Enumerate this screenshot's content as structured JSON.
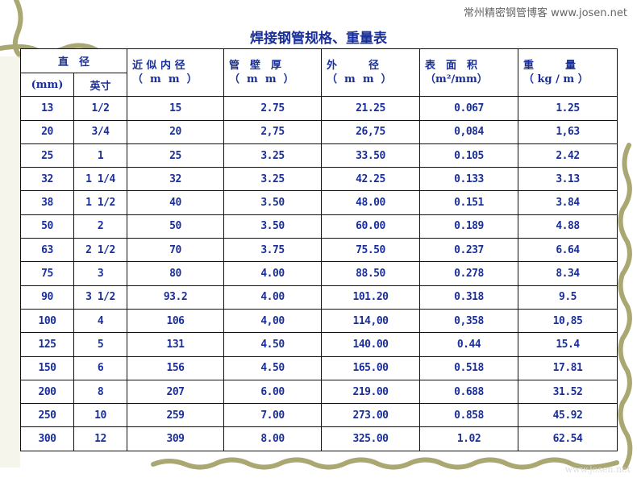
{
  "site_label": "常州精密钢管博客 www.josen.net",
  "title": "焊接钢管规格、重量表",
  "watermark": "www.josen.net",
  "headers": {
    "diameter": "直　径",
    "mm": "(mm)",
    "inch": "英寸",
    "inner": [
      "近 似 内 径",
      "（  m  m  ）"
    ],
    "wall": [
      "管　壁　厚",
      "（  m  m  ）"
    ],
    "outer": [
      "外　　　径",
      "（  m  m  ）"
    ],
    "surface": [
      "表　面　积",
      "（m²/mm）"
    ],
    "weight": [
      "重　　　量",
      "（ kg / m ）"
    ]
  },
  "rows": [
    [
      "13",
      "1/2",
      "15",
      "2.75",
      "21.25",
      "0.067",
      "1.25"
    ],
    [
      "20",
      "3/4",
      "20",
      "2,75",
      "26,75",
      "0,084",
      "1,63"
    ],
    [
      "25",
      "1",
      "25",
      "3.25",
      "33.50",
      "0.105",
      "2.42"
    ],
    [
      "32",
      "1 1/4",
      "32",
      "3.25",
      "42.25",
      "0.133",
      "3.13"
    ],
    [
      "38",
      "1 1/2",
      "40",
      "3.50",
      "48.00",
      "0.151",
      "3.84"
    ],
    [
      "50",
      "2",
      "50",
      "3.50",
      "60.00",
      "0.189",
      "4.88"
    ],
    [
      "63",
      "2 1/2",
      "70",
      "3.75",
      "75.50",
      "0.237",
      "6.64"
    ],
    [
      "75",
      "3",
      "80",
      "4.00",
      "88.50",
      "0.278",
      "8.34"
    ],
    [
      "90",
      "3 1/2",
      "93.2",
      "4.00",
      "101.20",
      "0.318",
      "9.5"
    ],
    [
      "100",
      "4",
      "106",
      "4,00",
      "114,00",
      "0,358",
      "10,85"
    ],
    [
      "125",
      "5",
      "131",
      "4.50",
      "140.00",
      "0.44",
      "15.4"
    ],
    [
      "150",
      "6",
      "156",
      "4.50",
      "165.00",
      "0.518",
      "17.81"
    ],
    [
      "200",
      "8",
      "207",
      "6.00",
      "219.00",
      "0.688",
      "31.52"
    ],
    [
      "250",
      "10",
      "259",
      "7.00",
      "273.00",
      "0.858",
      "45.92"
    ],
    [
      "300",
      "12",
      "309",
      "8.00",
      "325.00",
      "1.02",
      "62.54"
    ]
  ],
  "colors": {
    "text": "#1a2f9a",
    "vine": "#a9a873"
  }
}
